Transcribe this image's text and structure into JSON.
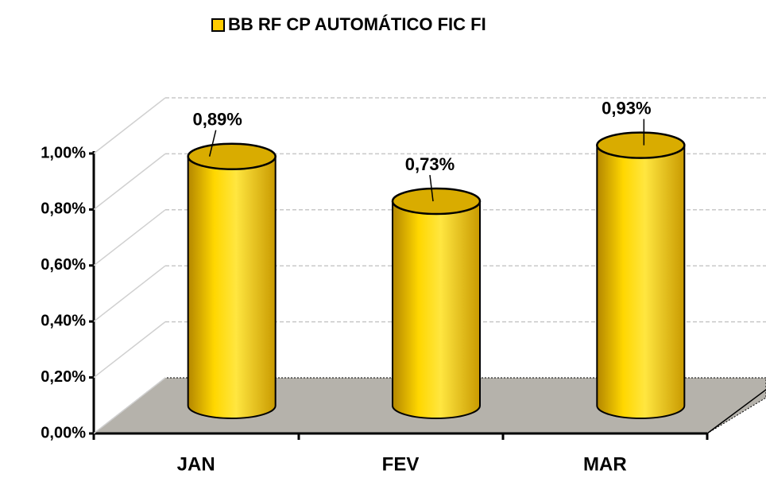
{
  "chart_data": {
    "type": "bar",
    "series": [
      {
        "name": "BB RF CP AUTOMÁTICO FIC FI",
        "color": "#ffcc00",
        "values": [
          0.89,
          0.73,
          0.93
        ],
        "value_labels": [
          "0,89%",
          "0,73%",
          "0,93%"
        ]
      }
    ],
    "categories": [
      "JAN",
      "FEV",
      "MAR"
    ],
    "ylim": [
      0,
      1.0
    ],
    "yticks": [
      {
        "value": 0,
        "label": "0,00%"
      },
      {
        "value": 0.2,
        "label": "0,20%"
      },
      {
        "value": 0.4,
        "label": "0,40%"
      },
      {
        "value": 0.6,
        "label": "0,60%"
      },
      {
        "value": 0.8,
        "label": "0,80%"
      },
      {
        "value": 1.0,
        "label": "1,00%"
      }
    ],
    "grid": true
  }
}
